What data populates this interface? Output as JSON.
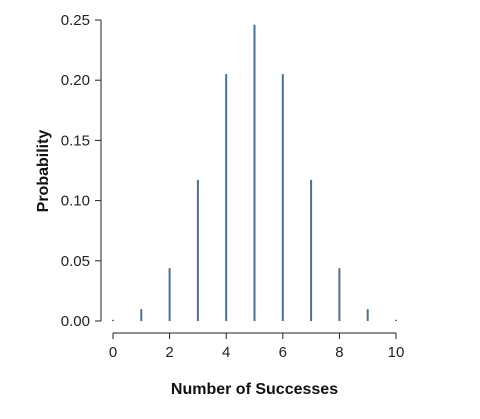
{
  "chart_data": {
    "type": "bar",
    "title": "",
    "xlabel": "Number of Successes",
    "ylabel": "Probability",
    "x": [
      0,
      1,
      2,
      3,
      4,
      5,
      6,
      7,
      8,
      9,
      10
    ],
    "values": [
      0.001,
      0.0098,
      0.0439,
      0.1172,
      0.2051,
      0.2461,
      0.2051,
      0.1172,
      0.0439,
      0.0098,
      0.001
    ],
    "xlim": [
      0,
      10
    ],
    "ylim": [
      0,
      0.25
    ],
    "x_ticks": [
      "0",
      "2",
      "4",
      "6",
      "8",
      "10"
    ],
    "y_ticks": [
      "0.00",
      "0.05",
      "0.10",
      "0.15",
      "0.20",
      "0.25"
    ],
    "grid": false,
    "bar_color": "#4a6f96"
  }
}
